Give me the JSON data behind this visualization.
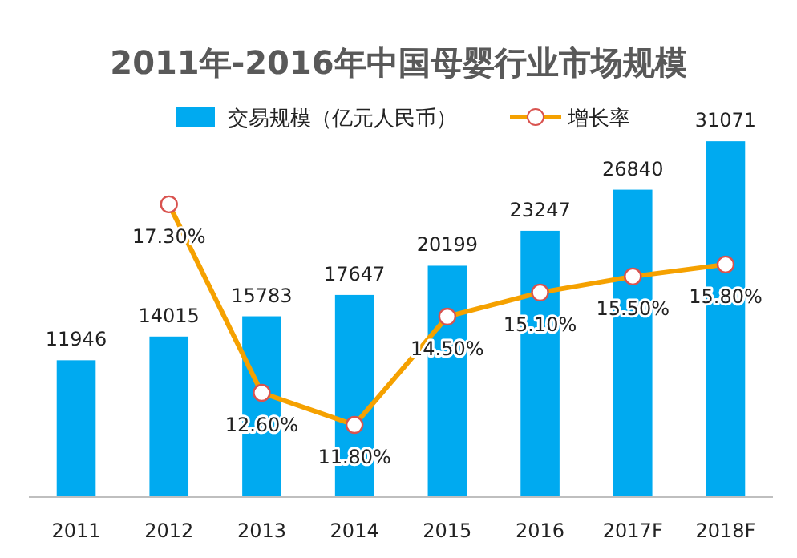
{
  "chart_data": {
    "type": "bar",
    "title": "2011年-2016年中国母婴行业市场规模",
    "categories": [
      "2011",
      "2012",
      "2013",
      "2014",
      "2015",
      "2016",
      "2017F",
      "2018F"
    ],
    "series": [
      {
        "name": "交易规模（亿元人民币）",
        "color": "#00aaf0",
        "values": [
          11946,
          14015,
          15783,
          17647,
          20199,
          23247,
          26840,
          31071
        ],
        "value_labels": [
          "11946",
          "14015",
          "15783",
          "17647",
          "20199",
          "23247",
          "26840",
          "31071"
        ]
      },
      {
        "name": "增长率",
        "type": "line",
        "axis": "y2",
        "color": "#f5a100",
        "marker": "circle",
        "values": [
          null,
          17.3,
          12.6,
          11.8,
          14.5,
          15.1,
          15.5,
          15.8
        ],
        "value_labels": [
          null,
          "17.30%",
          "12.60%",
          "11.80%",
          "14.50%",
          "15.10%",
          "15.50%",
          "15.80%"
        ]
      }
    ],
    "tick_labels": "x",
    "legend": "top",
    "grid": false
  }
}
